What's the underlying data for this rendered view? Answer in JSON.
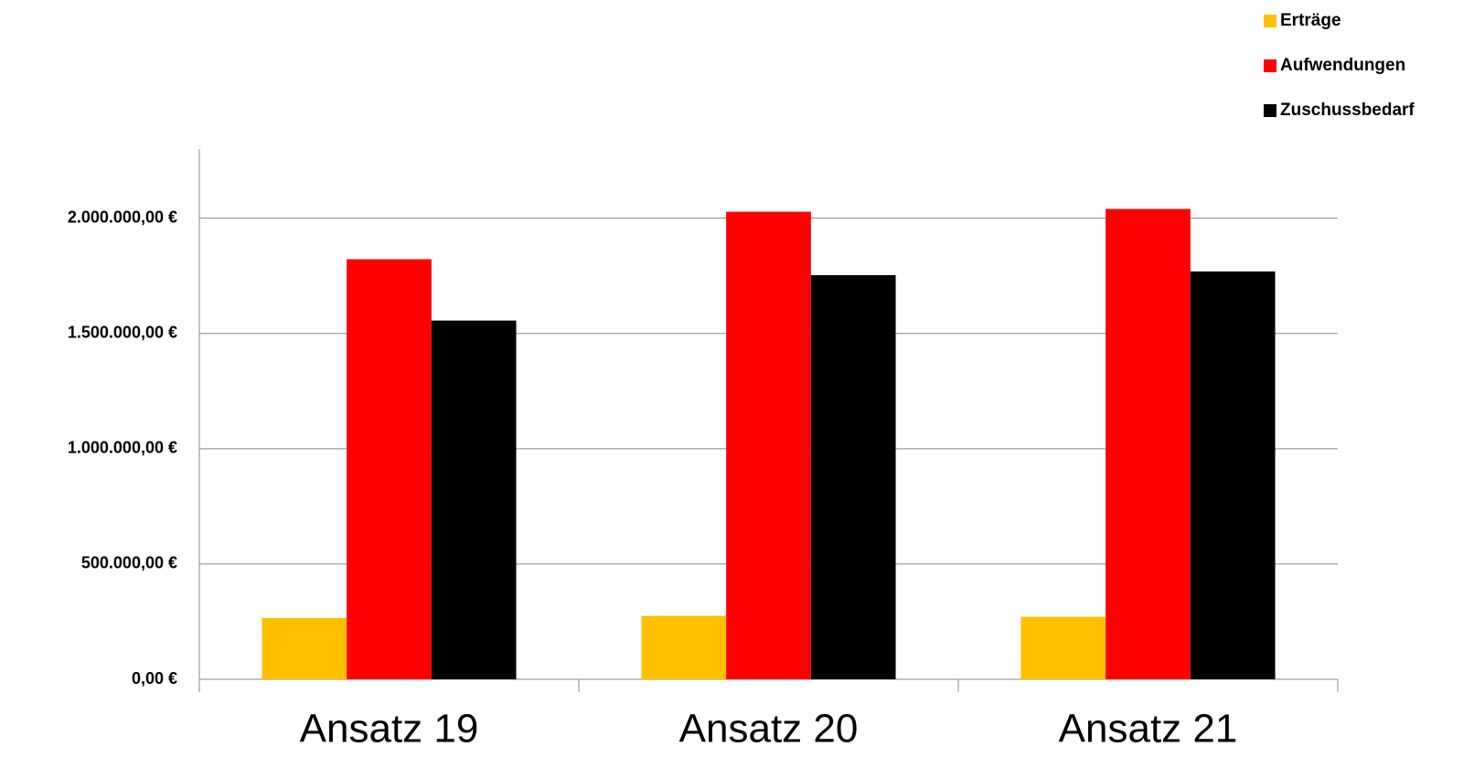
{
  "chart_data": {
    "type": "bar",
    "categories": [
      "Ansatz 19",
      "Ansatz 20",
      "Ansatz 21"
    ],
    "series": [
      {
        "name": "Erträge",
        "color": "#ffc000",
        "values": [
          266000,
          275000,
          271000
        ]
      },
      {
        "name": "Aufwendungen",
        "color": "#ff0000",
        "values": [
          1822000,
          2028000,
          2040000
        ]
      },
      {
        "name": "Zuschussbedarf",
        "color": "#000000",
        "values": [
          1556000,
          1753000,
          1769000
        ]
      }
    ],
    "ylim": [
      0,
      2300000
    ],
    "yticks": [
      {
        "value": 0,
        "label": "0,00 €"
      },
      {
        "value": 500000,
        "label": "500.000,00 €"
      },
      {
        "value": 1000000,
        "label": "1.000.000,00 €"
      },
      {
        "value": 1500000,
        "label": "1.500.000,00 €"
      },
      {
        "value": 2000000,
        "label": "2.000.000,00 €"
      }
    ],
    "grid": true,
    "legend": "top-right"
  }
}
